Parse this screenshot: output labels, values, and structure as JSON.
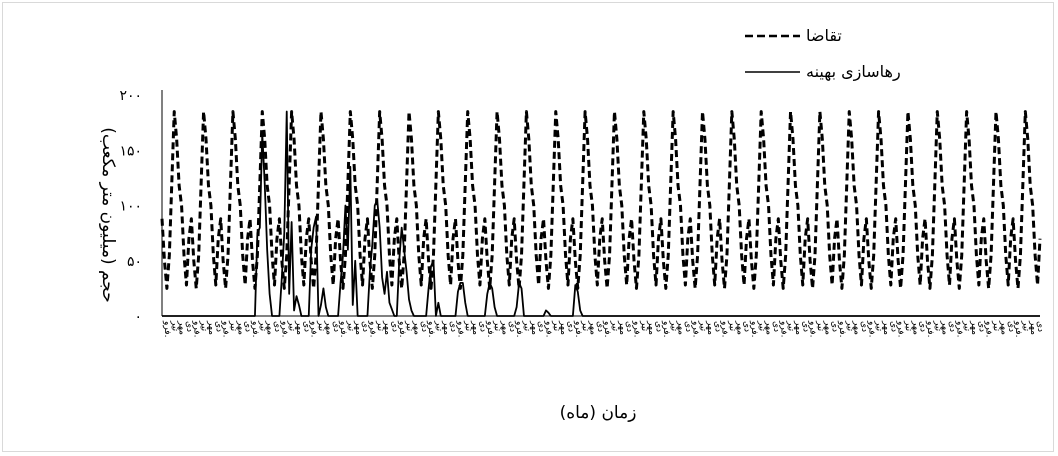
{
  "chart_data": {
    "type": "line",
    "title": "",
    "xlabel": "زمان (ماه)",
    "ylabel": "حجم (میلیون متر مکعب)",
    "ylim": [
      0,
      200
    ],
    "yticks": [
      0,
      50,
      100,
      150,
      200
    ],
    "ytick_labels": [
      "۰",
      "۵۰",
      "۱۰۰",
      "۱۵۰",
      "۲۰۰"
    ],
    "grid": false,
    "legend_position": "top-right",
    "month_cycle_labels": [
      "فرو.",
      "ارد.",
      "خرد.",
      "تیر",
      "مرد.",
      "شهر.",
      "مهر",
      "آبا.",
      "آذر",
      "دی",
      "بهم.",
      "اسف."
    ],
    "x_tick_labels_shown": [
      "فرو.",
      "دی",
      "مهر",
      "تیر"
    ],
    "months": 360,
    "demand_cycle": [
      88,
      50,
      25,
      55,
      120,
      185,
      160,
      118,
      100,
      55,
      28,
      70
    ],
    "series": [
      {
        "name": "تقاضا",
        "style": "dashed",
        "color": "#000000",
        "pattern": "repeat demand_cycle for all 30 years"
      },
      {
        "name": "رهاسازی بهینه",
        "style": "solid",
        "color": "#000000",
        "points": [
          [
            0,
            0
          ],
          [
            37,
            0
          ],
          [
            38,
            0
          ],
          [
            39,
            75
          ],
          [
            40,
            80
          ],
          [
            41,
            165
          ],
          [
            42,
            120
          ],
          [
            43,
            60
          ],
          [
            44,
            20
          ],
          [
            45,
            0
          ],
          [
            47,
            0
          ],
          [
            48,
            0
          ],
          [
            49,
            35
          ],
          [
            50,
            75
          ],
          [
            51,
            185
          ],
          [
            52,
            20
          ],
          [
            53,
            85
          ],
          [
            54,
            5
          ],
          [
            55,
            18
          ],
          [
            56,
            10
          ],
          [
            57,
            0
          ],
          [
            59,
            0
          ],
          [
            60,
            0
          ],
          [
            61,
            60
          ],
          [
            62,
            80
          ],
          [
            63,
            90
          ],
          [
            64,
            0
          ],
          [
            65,
            10
          ],
          [
            66,
            25
          ],
          [
            67,
            8
          ],
          [
            68,
            0
          ],
          [
            71,
            0
          ],
          [
            72,
            0
          ],
          [
            73,
            30
          ],
          [
            74,
            55
          ],
          [
            75,
            100
          ],
          [
            76,
            60
          ],
          [
            77,
            135
          ],
          [
            78,
            10
          ],
          [
            79,
            50
          ],
          [
            80,
            0
          ],
          [
            81,
            0
          ],
          [
            83,
            0
          ],
          [
            84,
            0
          ],
          [
            85,
            40
          ],
          [
            86,
            65
          ],
          [
            87,
            100
          ],
          [
            88,
            105
          ],
          [
            89,
            80
          ],
          [
            90,
            35
          ],
          [
            91,
            20
          ],
          [
            92,
            40
          ],
          [
            93,
            12
          ],
          [
            95,
            0
          ],
          [
            96,
            0
          ],
          [
            97,
            50
          ],
          [
            98,
            80
          ],
          [
            99,
            60
          ],
          [
            100,
            40
          ],
          [
            101,
            15
          ],
          [
            102,
            5
          ],
          [
            103,
            0
          ],
          [
            107,
            0
          ],
          [
            108,
            0
          ],
          [
            109,
            25
          ],
          [
            110,
            45
          ],
          [
            111,
            50
          ],
          [
            112,
            0
          ],
          [
            113,
            12
          ],
          [
            114,
            0
          ],
          [
            119,
            0
          ],
          [
            120,
            0
          ],
          [
            121,
            22
          ],
          [
            122,
            30
          ],
          [
            123,
            30
          ],
          [
            124,
            12
          ],
          [
            125,
            0
          ],
          [
            131,
            0
          ],
          [
            132,
            0
          ],
          [
            133,
            20
          ],
          [
            134,
            30
          ],
          [
            135,
            25
          ],
          [
            136,
            8
          ],
          [
            137,
            0
          ],
          [
            143,
            0
          ],
          [
            144,
            0
          ],
          [
            145,
            8
          ],
          [
            146,
            30
          ],
          [
            147,
            25
          ],
          [
            148,
            0
          ],
          [
            155,
            0
          ],
          [
            156,
            0
          ],
          [
            157,
            5
          ],
          [
            158,
            3
          ],
          [
            159,
            0
          ],
          [
            165,
            0
          ],
          [
            166,
            0
          ],
          [
            167,
            0
          ],
          [
            168,
            0
          ],
          [
            169,
            28
          ],
          [
            170,
            22
          ],
          [
            171,
            5
          ],
          [
            172,
            0
          ],
          [
            359,
            0
          ]
        ]
      }
    ]
  }
}
